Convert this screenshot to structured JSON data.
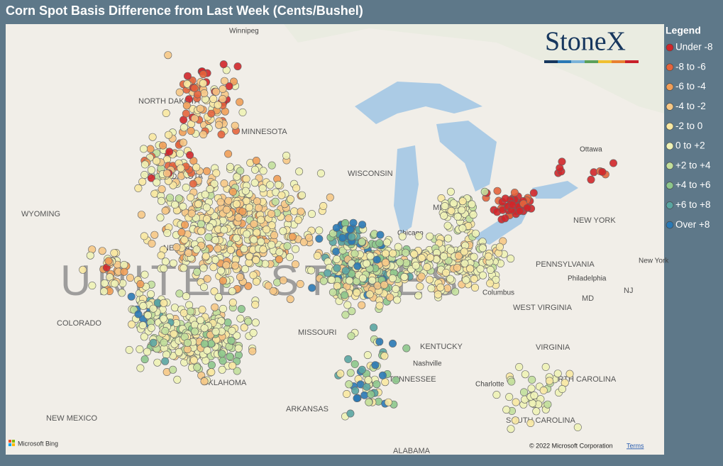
{
  "header": {
    "title": "Corn Spot Basis Difference from Last Week (Cents/Bushel)"
  },
  "legend": {
    "title": "Legend",
    "items": [
      {
        "label": "Under -8",
        "color": "#d0262a"
      },
      {
        "label": "-8 to -6",
        "color": "#e4643c"
      },
      {
        "label": "-6 to -4",
        "color": "#f09e58"
      },
      {
        "label": "-4 to -2",
        "color": "#f6c886"
      },
      {
        "label": "-2 to 0",
        "color": "#f8e8a2"
      },
      {
        "label": "0 to +2",
        "color": "#eef2b6"
      },
      {
        "label": "+2 to +4",
        "color": "#c2df9c"
      },
      {
        "label": "+4 to +6",
        "color": "#8dc68c"
      },
      {
        "label": "+6 to +8",
        "color": "#5aa5a2"
      },
      {
        "label": "Over +8",
        "color": "#2a79b5"
      }
    ]
  },
  "logo": "StoneX",
  "map": {
    "big_label": "UNITED STATES",
    "labels": [
      "Winnipeg",
      "NORTH DAKOTA",
      "MINNESOTA",
      "SOUTH DAKOTA",
      "WYOMING",
      "NEBRASKA",
      "WISCONSIN",
      "MICHIGAN",
      "Chicago",
      "COLORADO",
      "MISSOURI",
      "KENTUCKY",
      "Nashville",
      "TENNESSEE",
      "OKLAHOMA",
      "ARKANSAS",
      "NEW MEXICO",
      "ALABAMA",
      "SOUTH CAROLINA",
      "NORTH CAROLINA",
      "Charlotte",
      "VIRGINIA",
      "WEST VIRGINIA",
      "Columbus",
      "PENNSYLVANIA",
      "Philadelphia",
      "NEW YORK",
      "Ottawa",
      "MD",
      "NJ",
      "New York"
    ]
  },
  "footer": {
    "provider": "Microsoft Bing",
    "copyright": "© 2022 Microsoft Corporation",
    "terms": "Terms"
  }
}
